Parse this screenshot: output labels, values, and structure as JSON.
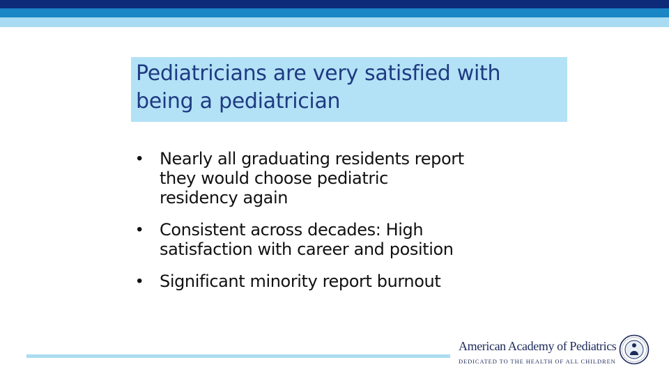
{
  "slide": {
    "title_lines": [
      "Pediatricians are very satisfied with",
      "being a pediatrician"
    ],
    "bullet_marker": "•",
    "bullets": [
      [
        "Nearly all graduating residents report",
        "they would choose pediatric",
        "residency again"
      ],
      [
        "Consistent across decades: High",
        "satisfaction with career and position"
      ],
      [
        "Significant minority report burnout"
      ]
    ]
  },
  "footer": {
    "org_name": "American Academy of Pediatrics",
    "tagline": "DEDICATED TO THE HEALTH OF ALL CHILDREN",
    "seal_icon": "aap-seal-icon"
  },
  "colors": {
    "navy_band": "#0e2b7a",
    "mid_band": "#1a86c6",
    "light_band": "#a9dcf2",
    "title_box": "#b3e2f6",
    "title_text": "#1f3a82"
  }
}
